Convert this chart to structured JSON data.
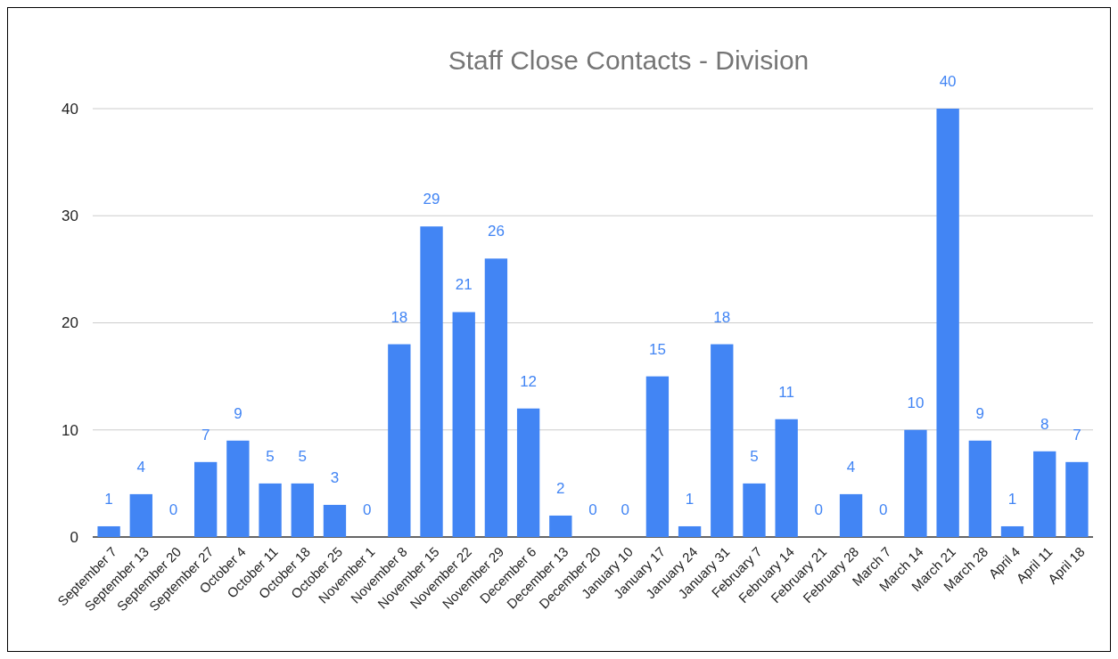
{
  "chart_data": {
    "type": "bar",
    "title": "Staff Close Contacts - Division",
    "categories": [
      "September 7",
      "September 13",
      "September 20",
      "September 27",
      "October 4",
      "October 11",
      "October 18",
      "October 25",
      "November 1",
      "November 8",
      "November 15",
      "November 22",
      "November 29",
      "December 6",
      "December 13",
      "December 20",
      "January 10",
      "January 17",
      "January 24",
      "January 31",
      "February 7",
      "February 14",
      "February 21",
      "February 28",
      "March 7",
      "March 14",
      "March 21",
      "March 28",
      "April 4",
      "April 11",
      "April 18"
    ],
    "values": [
      1,
      4,
      0,
      7,
      9,
      5,
      5,
      3,
      0,
      18,
      29,
      21,
      26,
      12,
      2,
      0,
      0,
      15,
      1,
      18,
      5,
      11,
      0,
      4,
      0,
      10,
      40,
      9,
      1,
      8,
      7
    ],
    "color": "#4285f4",
    "ylim": [
      0,
      40
    ],
    "yticks": [
      0,
      10,
      20,
      30,
      40
    ],
    "grid": "y",
    "data_labels": true
  }
}
